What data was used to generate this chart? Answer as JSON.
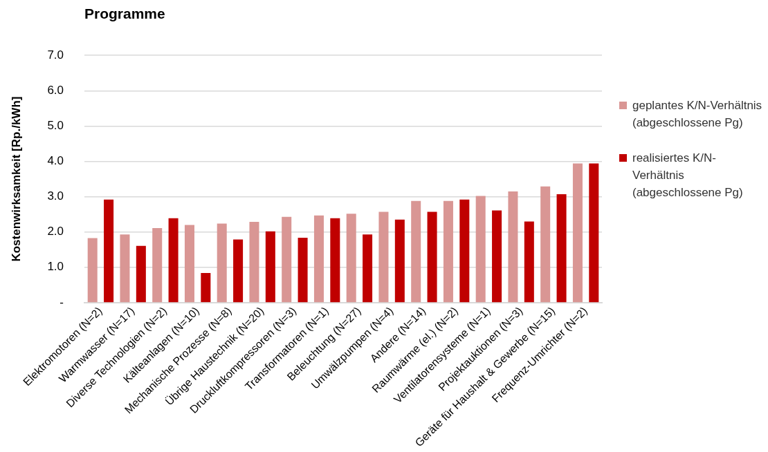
{
  "chart_data": {
    "type": "bar",
    "title": "Programme",
    "ylabel": "Kostenwirksamkeit [Rp./kWh]",
    "categories": [
      "Elektromotoren (N=2)",
      "Warmwasser (N=17)",
      "Diverse Technologien (N=2)",
      "Kälteanlagen (N=10)",
      "Mechanische Prozesse (N=8)",
      "Übrige Haustechnik (N=20)",
      "Druckluftkompressoren (N=3)",
      "Transformatoren (N=1)",
      "Beleuchtung (N=27)",
      "Umwälzpumpen (N=4)",
      "Andere (N=14)",
      "Raumwärme (el.) (N=2)",
      "Ventilatorensysteme (N=1)",
      "Projektauktionen (N=3)",
      "Geräte für Haushalt & Gewerbe (N=15)",
      "Frequenz-Umrichter (N=2)"
    ],
    "series": [
      {
        "name": "geplantes K/N-Verhältnis (abgeschlossene Pg)",
        "color": "#d99694",
        "values": [
          1.83,
          1.93,
          2.11,
          2.2,
          2.24,
          2.29,
          2.43,
          2.47,
          2.52,
          2.57,
          2.88,
          2.88,
          3.02,
          3.15,
          3.29,
          3.94
        ]
      },
      {
        "name": "realisiertes K/N-Verhältnis (abgeschlossene Pg)",
        "color": "#c00000",
        "values": [
          2.92,
          1.61,
          2.39,
          0.84,
          1.79,
          2.02,
          1.84,
          2.39,
          1.93,
          2.35,
          2.57,
          2.92,
          2.61,
          2.3,
          3.07,
          3.94
        ]
      }
    ],
    "ylim": [
      0,
      7
    ],
    "yticks": [
      {
        "value": 0,
        "label": "-"
      },
      {
        "value": 1,
        "label": "1.0"
      },
      {
        "value": 2,
        "label": "2.0"
      },
      {
        "value": 3,
        "label": "3.0"
      },
      {
        "value": 4,
        "label": "4.0"
      },
      {
        "value": 5,
        "label": "5.0"
      },
      {
        "value": 6,
        "label": "6.0"
      },
      {
        "value": 7,
        "label": "7.0"
      }
    ],
    "grid": "y",
    "legend": "right"
  }
}
